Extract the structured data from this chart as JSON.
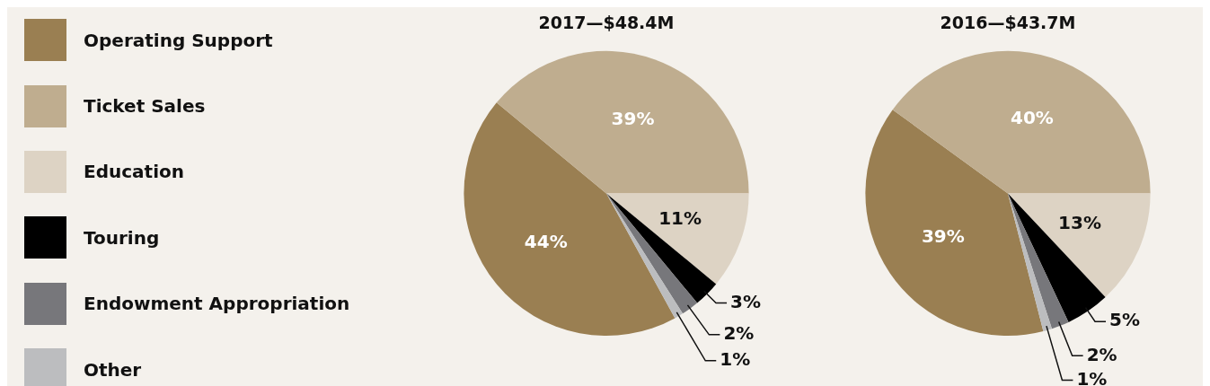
{
  "chart_data": {
    "type": "pie",
    "categories": [
      "Operating Support",
      "Ticket Sales",
      "Education",
      "Touring",
      "Endowment Appropriation",
      "Other"
    ],
    "colors": [
      "#9a7f52",
      "#bfad8f",
      "#ddd3c4",
      "#000000",
      "#77777b",
      "#bcbdbf"
    ],
    "legend": "left",
    "series": [
      {
        "name": "2017—$48.4M",
        "values": [
          44,
          39,
          11,
          3,
          2,
          1
        ],
        "value_labels": [
          "44%",
          "39%",
          "11%",
          "3%",
          "2%",
          "1%"
        ]
      },
      {
        "name": "2016—$43.7M",
        "values": [
          39,
          40,
          13,
          5,
          2,
          1
        ],
        "value_labels": [
          "39%",
          "40%",
          "13%",
          "5%",
          "2%",
          "1%"
        ]
      }
    ]
  }
}
